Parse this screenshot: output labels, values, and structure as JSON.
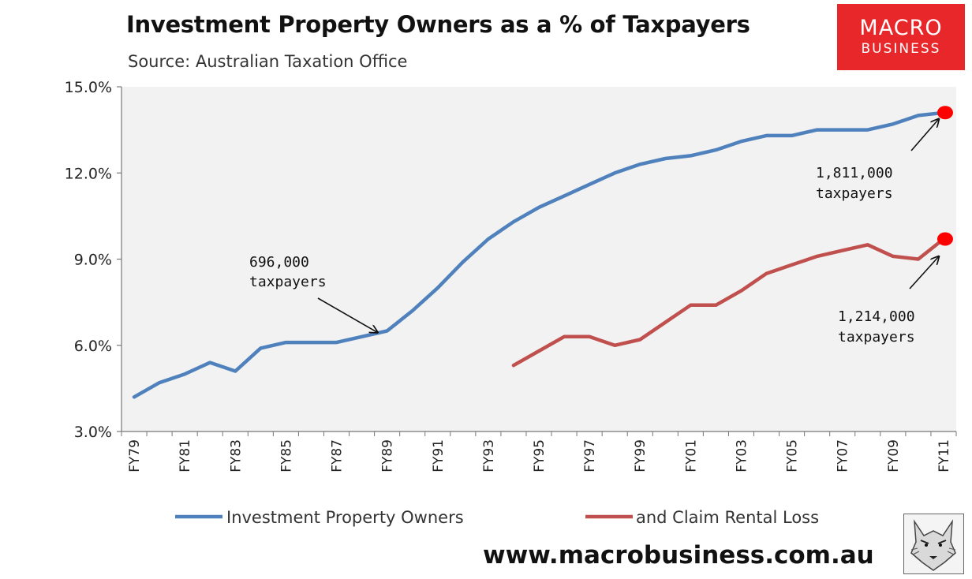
{
  "chart_data": {
    "type": "line",
    "title": "Investment Property Owners as a % of Taxpayers",
    "subtitle": "Source: Australian Taxation Office",
    "xlabel": "",
    "ylabel": "",
    "ylim": [
      3.0,
      15.0
    ],
    "y_ticks": [
      "3.0%",
      "6.0%",
      "9.0%",
      "12.0%",
      "15.0%"
    ],
    "y_tick_values": [
      3,
      6,
      9,
      12,
      15
    ],
    "x": [
      "FY79",
      "FY80",
      "FY81",
      "FY82",
      "FY83",
      "FY84",
      "FY85",
      "FY86",
      "FY87",
      "FY88",
      "FY89",
      "FY90",
      "FY91",
      "FY92",
      "FY93",
      "FY94",
      "FY95",
      "FY96",
      "FY97",
      "FY98",
      "FY99",
      "FY00",
      "FY01",
      "FY02",
      "FY03",
      "FY04",
      "FY05",
      "FY06",
      "FY07",
      "FY08",
      "FY09",
      "FY10",
      "FY11"
    ],
    "x_tick_labels": [
      "FY79",
      "FY81",
      "FY83",
      "FY85",
      "FY87",
      "FY89",
      "FY91",
      "FY93",
      "FY95",
      "FY97",
      "FY99",
      "FY01",
      "FY03",
      "FY05",
      "FY07",
      "FY09",
      "FY11"
    ],
    "series": [
      {
        "name": "Investment Property Owners",
        "color": "#4f81bd",
        "values": [
          4.2,
          4.7,
          5.0,
          5.4,
          5.1,
          5.9,
          6.1,
          6.1,
          6.1,
          6.3,
          6.5,
          7.2,
          8.0,
          8.9,
          9.7,
          10.3,
          10.8,
          11.2,
          11.6,
          12.0,
          12.3,
          12.5,
          12.6,
          12.8,
          13.1,
          13.3,
          13.3,
          13.5,
          13.5,
          13.5,
          13.7,
          14.0,
          14.1
        ]
      },
      {
        "name": "and Claim Rental Loss",
        "color": "#c0504d",
        "values": [
          null,
          null,
          null,
          null,
          null,
          null,
          null,
          null,
          null,
          null,
          null,
          null,
          null,
          null,
          null,
          5.3,
          5.8,
          6.3,
          6.3,
          6.0,
          6.2,
          6.8,
          7.4,
          7.4,
          7.9,
          8.5,
          8.8,
          9.1,
          9.3,
          9.5,
          9.1,
          9.0,
          9.7
        ]
      }
    ],
    "annotations": [
      {
        "line1": "696,000",
        "line2": "taxpayers",
        "x": "FY89",
        "y": 6.5
      },
      {
        "line1": "1,811,000",
        "line2": "taxpayers",
        "x": "FY11",
        "y": 14.1
      },
      {
        "line1": "1,214,000",
        "line2": "taxpayers",
        "x": "FY11",
        "y": 9.7
      }
    ],
    "grid": false,
    "legend": "bottom",
    "plot_background": "#f2f2f2"
  },
  "logo": {
    "line1": "MACRO",
    "line2": "BUSINESS"
  },
  "website": "www.macrobusiness.com.au",
  "wolf_icon": "wolf-icon"
}
